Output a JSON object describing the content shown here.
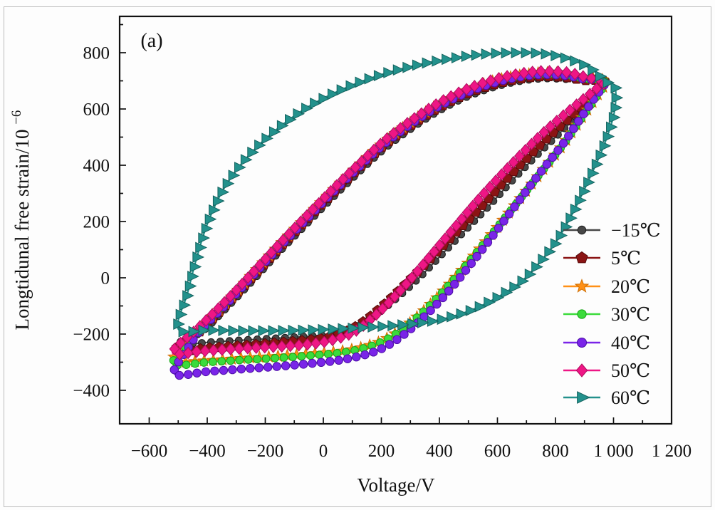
{
  "figure": {
    "panel_label": "(a)"
  },
  "axes": {
    "x": {
      "title": "Voltage/V",
      "min": -702,
      "max": 1200,
      "major_ticks": [
        -600,
        -400,
        -200,
        0,
        200,
        400,
        600,
        800,
        1000,
        1200
      ],
      "tick_labels": [
        "−600",
        "−400",
        "−200",
        "0",
        "200",
        "400",
        "600",
        "800",
        "1 000",
        "1 200"
      ],
      "minor_ticks": [
        -500,
        -300,
        -100,
        100,
        300,
        500,
        700,
        900,
        1100
      ]
    },
    "y": {
      "title_main": "Longtidunal free strain/10",
      "title_sup": "−6",
      "min": -519,
      "max": 929,
      "major_ticks": [
        -400,
        -200,
        0,
        200,
        400,
        600,
        800
      ],
      "tick_labels": [
        "−400",
        "−200",
        "0",
        "200",
        "400",
        "600",
        "800"
      ],
      "minor_ticks": [
        -300,
        -100,
        100,
        300,
        500,
        700,
        900
      ]
    },
    "grid": false
  },
  "legend": {
    "position": "right-middle",
    "border": "none"
  },
  "chart_data": {
    "type": "line",
    "description": "Longitudinal free strain vs voltage hysteresis loops at seven temperatures; each series is a closed loop (upper branch left-tip to right-tip, then lower branch back).",
    "xlabel": "Voltage/V",
    "ylabel": "Longtidunal free strain/10^-6",
    "xlim": [
      -702,
      1200
    ],
    "ylim": [
      -519,
      929
    ],
    "series": [
      {
        "name": "t-15",
        "label": "−15℃",
        "marker": "circle",
        "color": "#474747",
        "edge": "#1c1c1c",
        "marker_size": 6,
        "marker_spacing": 13,
        "points": [
          [
            -504,
            -236
          ],
          [
            -419,
            -192
          ],
          [
            -329,
            -102
          ],
          [
            -239,
            -5
          ],
          [
            -149,
            95
          ],
          [
            -59,
            190
          ],
          [
            31,
            284
          ],
          [
            121,
            374
          ],
          [
            211,
            459
          ],
          [
            301,
            529
          ],
          [
            391,
            589
          ],
          [
            481,
            637
          ],
          [
            571,
            672
          ],
          [
            661,
            696
          ],
          [
            751,
            708
          ],
          [
            839,
            706
          ],
          [
            901,
            700
          ],
          [
            970,
            698
          ],
          [
            932,
            642
          ],
          [
            882,
            582
          ],
          [
            812,
            512
          ],
          [
            732,
            432
          ],
          [
            652,
            347
          ],
          [
            572,
            257
          ],
          [
            492,
            172
          ],
          [
            412,
            87
          ],
          [
            332,
            2
          ],
          [
            252,
            -73
          ],
          [
            172,
            -138
          ],
          [
            92,
            -183
          ],
          [
            2,
            -203
          ],
          [
            -118,
            -212
          ],
          [
            -248,
            -220
          ],
          [
            -378,
            -228
          ]
        ]
      },
      {
        "name": "t5",
        "label": "5℃",
        "marker": "pentagon",
        "color": "#8b1414",
        "edge": "#560a0a",
        "marker_size": 7.5,
        "marker_spacing": 13,
        "points": [
          [
            -514,
            -260
          ],
          [
            -424,
            -190
          ],
          [
            -334,
            -96
          ],
          [
            -244,
            2
          ],
          [
            -154,
            102
          ],
          [
            -64,
            198
          ],
          [
            26,
            292
          ],
          [
            116,
            382
          ],
          [
            206,
            467
          ],
          [
            296,
            537
          ],
          [
            386,
            597
          ],
          [
            476,
            645
          ],
          [
            566,
            680
          ],
          [
            656,
            703
          ],
          [
            746,
            715
          ],
          [
            836,
            712
          ],
          [
            900,
            702
          ],
          [
            970,
            698
          ],
          [
            922,
            642
          ],
          [
            862,
            582
          ],
          [
            782,
            507
          ],
          [
            702,
            427
          ],
          [
            622,
            342
          ],
          [
            542,
            252
          ],
          [
            462,
            167
          ],
          [
            382,
            82
          ],
          [
            302,
            -3
          ],
          [
            222,
            -83
          ],
          [
            142,
            -153
          ],
          [
            62,
            -198
          ],
          [
            -38,
            -220
          ],
          [
            -158,
            -231
          ],
          [
            -278,
            -241
          ],
          [
            -398,
            -250
          ]
        ]
      },
      {
        "name": "t20",
        "label": "20℃",
        "marker": "star",
        "color": "#ff9016",
        "edge": "#cf6e00",
        "marker_size": 8.5,
        "marker_spacing": 13,
        "points": [
          [
            -517,
            -296
          ],
          [
            -469,
            -232
          ],
          [
            -421,
            -178
          ],
          [
            -332,
            -86
          ],
          [
            -242,
            16
          ],
          [
            -152,
            116
          ],
          [
            -62,
            211
          ],
          [
            28,
            306
          ],
          [
            118,
            396
          ],
          [
            208,
            481
          ],
          [
            298,
            551
          ],
          [
            388,
            611
          ],
          [
            478,
            658
          ],
          [
            568,
            694
          ],
          [
            658,
            716
          ],
          [
            748,
            728
          ],
          [
            838,
            724
          ],
          [
            901,
            710
          ],
          [
            970,
            698
          ],
          [
            934,
            634
          ],
          [
            884,
            559
          ],
          [
            823,
            469
          ],
          [
            743,
            366
          ],
          [
            663,
            262
          ],
          [
            583,
            159
          ],
          [
            503,
            59
          ],
          [
            423,
            -36
          ],
          [
            343,
            -120
          ],
          [
            263,
            -188
          ],
          [
            183,
            -232
          ],
          [
            83,
            -258
          ],
          [
            -37,
            -270
          ],
          [
            -157,
            -279
          ],
          [
            -277,
            -286
          ],
          [
            -397,
            -294
          ]
        ]
      },
      {
        "name": "t30",
        "label": "30℃",
        "marker": "circle",
        "color": "#3bdb3b",
        "edge": "#17a517",
        "marker_size": 6.5,
        "marker_spacing": 12.5,
        "points": [
          [
            -518,
            -308
          ],
          [
            -470,
            -238
          ],
          [
            -423,
            -180
          ],
          [
            -334,
            -88
          ],
          [
            -244,
            14
          ],
          [
            -154,
            114
          ],
          [
            -64,
            209
          ],
          [
            26,
            304
          ],
          [
            116,
            394
          ],
          [
            206,
            479
          ],
          [
            296,
            549
          ],
          [
            386,
            609
          ],
          [
            476,
            656
          ],
          [
            566,
            692
          ],
          [
            656,
            714
          ],
          [
            746,
            726
          ],
          [
            836,
            722
          ],
          [
            900,
            708
          ],
          [
            970,
            698
          ],
          [
            933,
            632
          ],
          [
            883,
            557
          ],
          [
            822,
            467
          ],
          [
            742,
            364
          ],
          [
            662,
            260
          ],
          [
            582,
            157
          ],
          [
            502,
            57
          ],
          [
            422,
            -38
          ],
          [
            342,
            -123
          ],
          [
            262,
            -191
          ],
          [
            182,
            -236
          ],
          [
            82,
            -263
          ],
          [
            -38,
            -276
          ],
          [
            -158,
            -285
          ],
          [
            -278,
            -292
          ],
          [
            -398,
            -300
          ]
        ]
      },
      {
        "name": "t40",
        "label": "40℃",
        "marker": "circle",
        "color": "#7a24e8",
        "edge": "#4c0fa6",
        "marker_size": 7,
        "marker_spacing": 12.5,
        "points": [
          [
            -513,
            -342
          ],
          [
            -468,
            -252
          ],
          [
            -420,
            -183
          ],
          [
            -333,
            -92
          ],
          [
            -243,
            8
          ],
          [
            -153,
            108
          ],
          [
            -63,
            203
          ],
          [
            27,
            298
          ],
          [
            117,
            388
          ],
          [
            207,
            473
          ],
          [
            297,
            543
          ],
          [
            387,
            603
          ],
          [
            477,
            650
          ],
          [
            567,
            686
          ],
          [
            657,
            710
          ],
          [
            747,
            722
          ],
          [
            837,
            718
          ],
          [
            900,
            706
          ],
          [
            970,
            698
          ],
          [
            935,
            640
          ],
          [
            885,
            565
          ],
          [
            823,
            472
          ],
          [
            743,
            368
          ],
          [
            663,
            258
          ],
          [
            583,
            148
          ],
          [
            503,
            42
          ],
          [
            423,
            -58
          ],
          [
            343,
            -143
          ],
          [
            263,
            -213
          ],
          [
            183,
            -260
          ],
          [
            83,
            -288
          ],
          [
            -37,
            -304
          ],
          [
            -157,
            -315
          ],
          [
            -277,
            -324
          ],
          [
            -397,
            -333
          ]
        ]
      },
      {
        "name": "t50",
        "label": "50℃",
        "marker": "diamond",
        "color": "#ee1685",
        "edge": "#b00c5e",
        "marker_size": 8,
        "marker_spacing": 12,
        "points": [
          [
            -520,
            -266
          ],
          [
            -425,
            -172
          ],
          [
            -332,
            -78
          ],
          [
            -240,
            22
          ],
          [
            -150,
            122
          ],
          [
            -60,
            218
          ],
          [
            30,
            312
          ],
          [
            120,
            402
          ],
          [
            210,
            487
          ],
          [
            300,
            557
          ],
          [
            390,
            617
          ],
          [
            480,
            664
          ],
          [
            570,
            699
          ],
          [
            660,
            722
          ],
          [
            750,
            734
          ],
          [
            840,
            730
          ],
          [
            902,
            714
          ],
          [
            970,
            698
          ],
          [
            945,
            675
          ],
          [
            905,
            642
          ],
          [
            845,
            592
          ],
          [
            765,
            522
          ],
          [
            685,
            442
          ],
          [
            605,
            357
          ],
          [
            525,
            267
          ],
          [
            455,
            182
          ],
          [
            385,
            97
          ],
          [
            315,
            12
          ],
          [
            245,
            -68
          ],
          [
            175,
            -138
          ],
          [
            105,
            -193
          ],
          [
            25,
            -223
          ],
          [
            -55,
            -237
          ],
          [
            -145,
            -244
          ],
          [
            -235,
            -249
          ],
          [
            -325,
            -254
          ],
          [
            -420,
            -261
          ]
        ]
      },
      {
        "name": "t60",
        "label": "60℃",
        "marker": "triangle-right",
        "color": "#23918c",
        "edge": "#14635f",
        "marker_size": 7.5,
        "marker_spacing": 14,
        "points": [
          [
            -500,
            -182
          ],
          [
            -468,
            -55
          ],
          [
            -438,
            65
          ],
          [
            -400,
            190
          ],
          [
            -352,
            300
          ],
          [
            -292,
            392
          ],
          [
            -222,
            472
          ],
          [
            -142,
            543
          ],
          [
            -52,
            608
          ],
          [
            48,
            662
          ],
          [
            158,
            708
          ],
          [
            278,
            745
          ],
          [
            398,
            772
          ],
          [
            528,
            792
          ],
          [
            650,
            800
          ],
          [
            770,
            795
          ],
          [
            872,
            768
          ],
          [
            932,
            735
          ],
          [
            970,
            698
          ],
          [
            998,
            686
          ],
          [
            1008,
            655
          ],
          [
            1000,
            575
          ],
          [
            965,
            465
          ],
          [
            915,
            348
          ],
          [
            862,
            235
          ],
          [
            805,
            132
          ],
          [
            748,
            58
          ],
          [
            688,
            -8
          ],
          [
            615,
            -60
          ],
          [
            532,
            -105
          ],
          [
            452,
            -135
          ],
          [
            370,
            -155
          ],
          [
            262,
            -168
          ],
          [
            152,
            -176
          ],
          [
            42,
            -182
          ],
          [
            -68,
            -186
          ],
          [
            -178,
            -188
          ],
          [
            -288,
            -188
          ],
          [
            -398,
            -186
          ]
        ]
      }
    ]
  }
}
